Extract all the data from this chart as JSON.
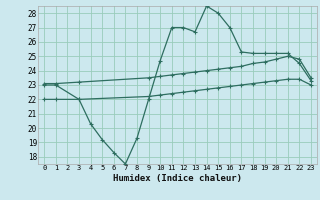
{
  "xlabel": "Humidex (Indice chaleur)",
  "bg_color": "#cce8ee",
  "grid_color": "#99ccbb",
  "line_color": "#2e6e60",
  "xlim": [
    -0.5,
    23.5
  ],
  "ylim": [
    17.5,
    28.5
  ],
  "xticks": [
    0,
    1,
    2,
    3,
    4,
    5,
    6,
    7,
    8,
    9,
    10,
    11,
    12,
    13,
    14,
    15,
    16,
    17,
    18,
    19,
    20,
    21,
    22,
    23
  ],
  "yticks": [
    18,
    19,
    20,
    21,
    22,
    23,
    24,
    25,
    26,
    27,
    28
  ],
  "curve_x": [
    0,
    1,
    3,
    4,
    5,
    6,
    7,
    8,
    9,
    10,
    11,
    12,
    13,
    14,
    15,
    16,
    17,
    18,
    19,
    20,
    21,
    22,
    23
  ],
  "curve_y": [
    23,
    23,
    22,
    20.3,
    19.2,
    18.3,
    17.5,
    19.3,
    22,
    24.7,
    27,
    27,
    26.7,
    28.5,
    28,
    27,
    25.3,
    25.2,
    25.2,
    25.2,
    25.2,
    24.5,
    23.3
  ],
  "upper_x": [
    0,
    1,
    3,
    9,
    10,
    11,
    12,
    13,
    14,
    15,
    16,
    17,
    18,
    19,
    20,
    21,
    22,
    23
  ],
  "upper_y": [
    23.1,
    23.1,
    23.2,
    23.5,
    23.6,
    23.7,
    23.8,
    23.9,
    24.0,
    24.1,
    24.2,
    24.3,
    24.5,
    24.6,
    24.8,
    25.0,
    24.8,
    23.5
  ],
  "lower_x": [
    0,
    1,
    3,
    9,
    10,
    11,
    12,
    13,
    14,
    15,
    16,
    17,
    18,
    19,
    20,
    21,
    22,
    23
  ],
  "lower_y": [
    22.0,
    22.0,
    22.0,
    22.2,
    22.3,
    22.4,
    22.5,
    22.6,
    22.7,
    22.8,
    22.9,
    23.0,
    23.1,
    23.2,
    23.3,
    23.4,
    23.4,
    23.0
  ]
}
